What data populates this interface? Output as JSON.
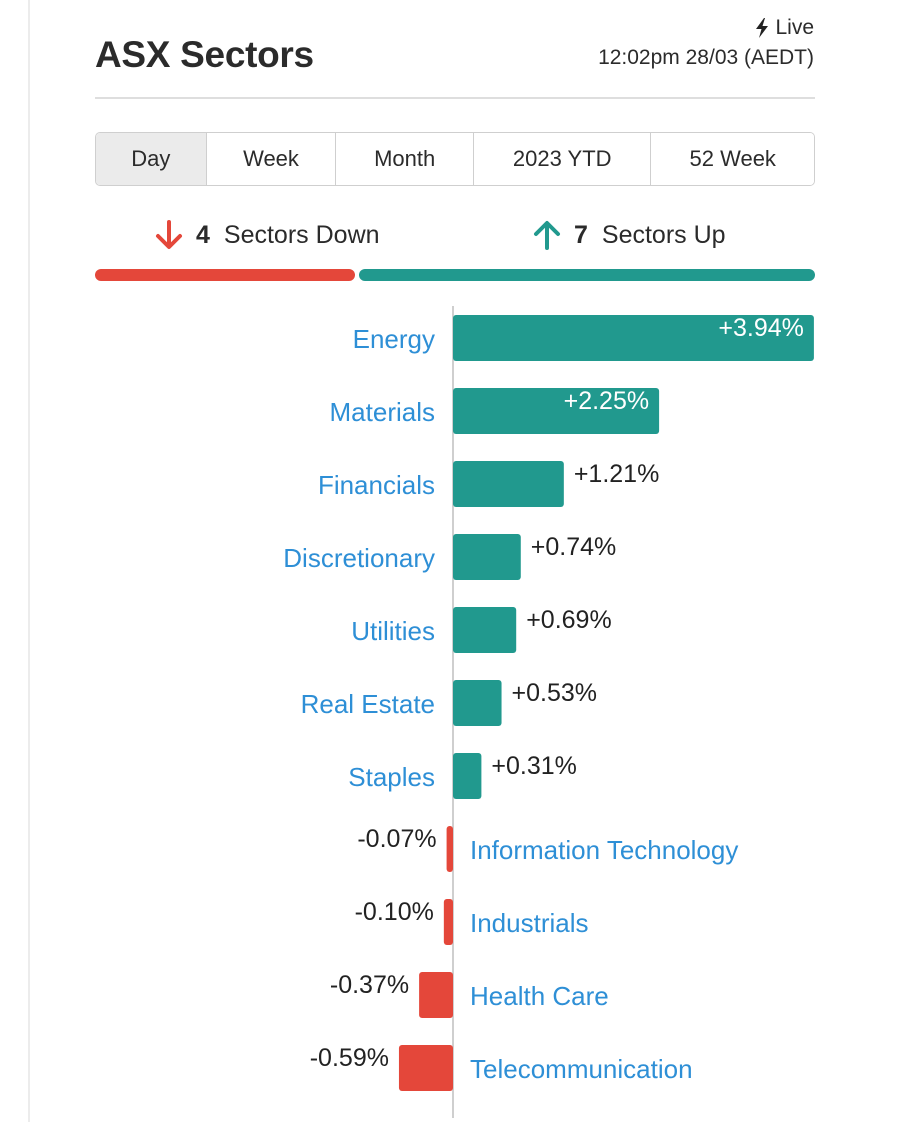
{
  "header": {
    "title": "ASX Sectors",
    "live_label": "Live",
    "timestamp": "12:02pm 28/03 (AEDT)",
    "live_icon": "lightning-bolt-icon"
  },
  "tabs": [
    {
      "label": "Day",
      "active": true
    },
    {
      "label": "Week",
      "active": false
    },
    {
      "label": "Month",
      "active": false
    },
    {
      "label": "2023 YTD",
      "active": false
    },
    {
      "label": "52 Week",
      "active": false
    }
  ],
  "summary": {
    "down_count": "4",
    "down_label": "Sectors Down",
    "down_icon": "arrow-down-icon",
    "up_count": "7",
    "up_label": "Sectors Up",
    "up_icon": "arrow-up-icon"
  },
  "colors": {
    "up": "#21998e",
    "down": "#e4473a",
    "label_link": "#2e8fd6",
    "divider": "#dedede"
  },
  "chart_data": {
    "type": "bar",
    "orientation": "horizontal",
    "categories": [
      "Energy",
      "Materials",
      "Financials",
      "Discretionary",
      "Utilities",
      "Real Estate",
      "Staples",
      "Information Technology",
      "Industrials",
      "Health Care",
      "Telecommunication"
    ],
    "values": [
      3.94,
      2.25,
      1.21,
      0.74,
      0.69,
      0.53,
      0.31,
      -0.07,
      -0.1,
      -0.37,
      -0.59
    ],
    "labels": [
      "+3.94%",
      "+2.25%",
      "+1.21%",
      "+0.74%",
      "+0.69%",
      "+0.53%",
      "+0.31%",
      "-0.07%",
      "-0.10%",
      "-0.37%",
      "-0.59%"
    ],
    "unit": "%",
    "title": "",
    "xlabel": "",
    "ylabel": "",
    "grid": false
  }
}
